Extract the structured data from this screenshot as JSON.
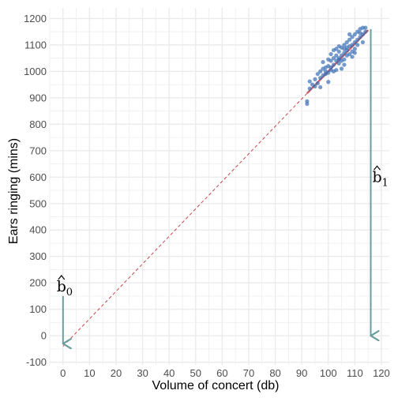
{
  "chart_data": {
    "type": "scatter",
    "title": "",
    "xlabel": "Volume of concert (db)",
    "ylabel": "Ears ringing (mins)",
    "xlim": [
      -5,
      123
    ],
    "ylim": [
      -110,
      1240
    ],
    "xticks": [
      0,
      10,
      20,
      30,
      40,
      50,
      60,
      70,
      80,
      90,
      100,
      110,
      120
    ],
    "yticks": [
      -100,
      0,
      100,
      200,
      300,
      400,
      500,
      600,
      700,
      800,
      900,
      1000,
      1100,
      1200
    ],
    "grid": true,
    "colors": {
      "points": "#3a6fb5",
      "fit_line": "#c8464b",
      "arrows": "#6a9e9c",
      "grid": "#ebebeb"
    },
    "regression": {
      "intercept": -40,
      "slope": 10.4,
      "x_min": 92,
      "x_max": 115
    },
    "annotations": [
      {
        "label": "b",
        "subscript": "0",
        "hat": true,
        "x_from": 0,
        "y_from": 150,
        "x_to": 0,
        "y_to": -30
      },
      {
        "label": "b",
        "subscript": "1",
        "hat": true,
        "x_from": 116,
        "y_from": 1160,
        "x_to": 116,
        "y_to": 0
      }
    ],
    "points": [
      [
        92,
        887
      ],
      [
        92,
        877
      ],
      [
        93,
        962
      ],
      [
        93,
        935
      ],
      [
        94,
        950
      ],
      [
        95,
        943
      ],
      [
        95,
        970
      ],
      [
        96,
        990
      ],
      [
        96,
        955
      ],
      [
        97,
        975
      ],
      [
        97,
        1000
      ],
      [
        98,
        985
      ],
      [
        98,
        1010
      ],
      [
        98,
        1035
      ],
      [
        99,
        1000
      ],
      [
        99,
        990
      ],
      [
        100,
        1020
      ],
      [
        100,
        1045
      ],
      [
        100,
        995
      ],
      [
        101,
        1040
      ],
      [
        101,
        1065
      ],
      [
        101,
        1005
      ],
      [
        102,
        1025
      ],
      [
        102,
        1080
      ],
      [
        102,
        1050
      ],
      [
        103,
        1040
      ],
      [
        103,
        1060
      ],
      [
        103,
        1005
      ],
      [
        104,
        1075
      ],
      [
        104,
        1050
      ],
      [
        104,
        1030
      ],
      [
        105,
        1060
      ],
      [
        105,
        1090
      ],
      [
        105,
        1010
      ],
      [
        106,
        1070
      ],
      [
        106,
        1100
      ],
      [
        106,
        1045
      ],
      [
        107,
        1080
      ],
      [
        107,
        1060
      ],
      [
        107,
        1110
      ],
      [
        108,
        1095
      ],
      [
        108,
        1065
      ],
      [
        108,
        1120
      ],
      [
        109,
        1100
      ],
      [
        109,
        1075
      ],
      [
        109,
        1130
      ],
      [
        110,
        1110
      ],
      [
        110,
        1085
      ],
      [
        110,
        1140
      ],
      [
        111,
        1120
      ],
      [
        111,
        1150
      ],
      [
        111,
        1100
      ],
      [
        112,
        1130
      ],
      [
        112,
        1160
      ],
      [
        113,
        1140
      ],
      [
        113,
        1110
      ],
      [
        114,
        1150
      ],
      [
        114,
        1165
      ],
      [
        101,
        1015
      ],
      [
        103,
        1085
      ],
      [
        105,
        1040
      ],
      [
        107,
        1090
      ],
      [
        109,
        1055
      ],
      [
        99,
        1015
      ],
      [
        100,
        960
      ],
      [
        102,
        1000
      ],
      [
        104,
        1095
      ],
      [
        106,
        1025
      ],
      [
        108,
        1140
      ],
      [
        110,
        1070
      ],
      [
        97,
        940
      ],
      [
        112,
        1145
      ],
      [
        113,
        1165
      ],
      [
        104,
        1045
      ],
      [
        106,
        1085
      ]
    ]
  }
}
